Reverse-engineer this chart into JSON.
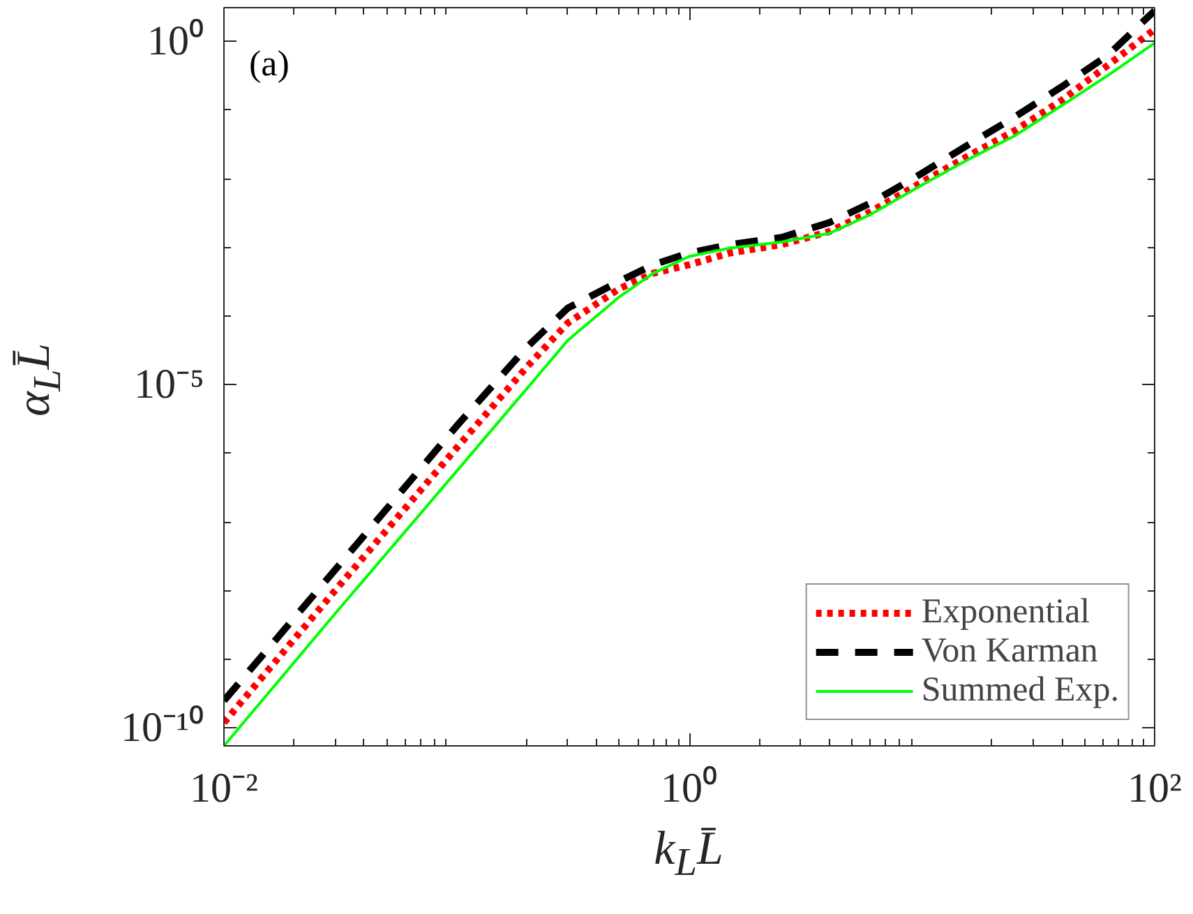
{
  "chart_data": {
    "type": "line",
    "xlabel": "k$_{L}$L̄",
    "ylabel": "α$_{L}$L̄",
    "annotations": [
      "(a)"
    ],
    "log": "xy",
    "legend": "bottom right",
    "grid": false,
    "xlim": [
      0.01,
      100
    ],
    "xticks": [
      {
        "value": 0.01,
        "label": "10⁻²"
      },
      {
        "value": 1,
        "label": "10⁰"
      },
      {
        "value": 100,
        "label": "10²"
      }
    ],
    "ylim": [
      5.5e-11,
      3.1
    ],
    "yticks": [
      {
        "value": 1e-10,
        "label": "10⁻¹⁰"
      },
      {
        "value": 1e-05,
        "label": "10⁻⁵"
      },
      {
        "value": 1,
        "label": "10⁰"
      }
    ],
    "x": [
      0.01,
      0.03,
      0.1,
      0.2,
      0.3,
      0.5,
      0.7,
      1,
      1.5,
      2.5,
      4,
      6,
      10,
      16,
      25,
      40,
      63,
      100
    ],
    "series": [
      {
        "name": "Exponential",
        "color": "#ff0000",
        "line_style": "dotted",
        "values": [
          1.2e-10,
          1e-08,
          1.2e-06,
          1.8e-05,
          7.9e-05,
          0.00025,
          0.00042,
          0.00056,
          0.00083,
          0.0011,
          0.0017,
          0.0033,
          0.0089,
          0.022,
          0.05,
          0.14,
          0.45,
          1.5
        ]
      },
      {
        "name": "Von Karman",
        "color": "#000000",
        "line_style": "dashed",
        "values": [
          2.5e-10,
          2e-08,
          2.5e-06,
          3.5e-05,
          0.00013,
          0.00032,
          0.00056,
          0.00083,
          0.0011,
          0.0014,
          0.0023,
          0.0044,
          0.012,
          0.032,
          0.079,
          0.22,
          0.63,
          2.8
        ]
      },
      {
        "name": "Summed Exp.",
        "color": "#00ff00",
        "line_style": "solid",
        "values": [
          5.5e-11,
          4.6e-09,
          5.5e-07,
          8.7e-06,
          4.4e-05,
          0.00019,
          0.00042,
          0.00074,
          0.00098,
          0.0012,
          0.0016,
          0.003,
          0.0081,
          0.0195,
          0.042,
          0.117,
          0.32,
          0.95
        ]
      }
    ]
  }
}
